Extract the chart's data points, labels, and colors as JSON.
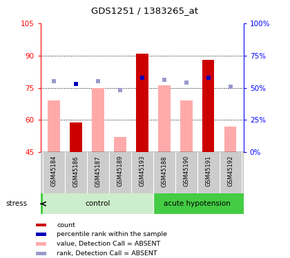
{
  "title": "GDS1251 / 1383265_at",
  "samples": [
    "GSM45184",
    "GSM45186",
    "GSM45187",
    "GSM45189",
    "GSM45193",
    "GSM45188",
    "GSM45190",
    "GSM45191",
    "GSM45192"
  ],
  "red_bars": [
    null,
    59,
    null,
    null,
    91,
    null,
    null,
    88,
    null
  ],
  "pink_bars": [
    69,
    null,
    75,
    52,
    null,
    76,
    69,
    null,
    57
  ],
  "blue_squares_pct": [
    null,
    53,
    null,
    null,
    58,
    null,
    null,
    58,
    null
  ],
  "light_blue_squares_pct": [
    55,
    null,
    55,
    48,
    58,
    56,
    54,
    null,
    51
  ],
  "ylim_left": [
    45,
    105
  ],
  "ylim_right": [
    0,
    100
  ],
  "yticks_left": [
    45,
    60,
    75,
    90,
    105
  ],
  "ytick_labels_left": [
    "45",
    "60",
    "75",
    "90",
    "105"
  ],
  "yticks_right": [
    0,
    25,
    50,
    75,
    100
  ],
  "ytick_labels_right": [
    "0%",
    "25%",
    "50%",
    "75%",
    "100%"
  ],
  "hlines": [
    60,
    75,
    90
  ],
  "red_color": "#cc0000",
  "pink_color": "#ffaaaa",
  "blue_color": "#0000bb",
  "light_blue_color": "#9999cc",
  "control_color": "#cceecc",
  "hypotension_color": "#44cc44",
  "gray_color": "#cccccc",
  "bar_width": 0.55,
  "n_control": 5,
  "n_hypotension": 4
}
